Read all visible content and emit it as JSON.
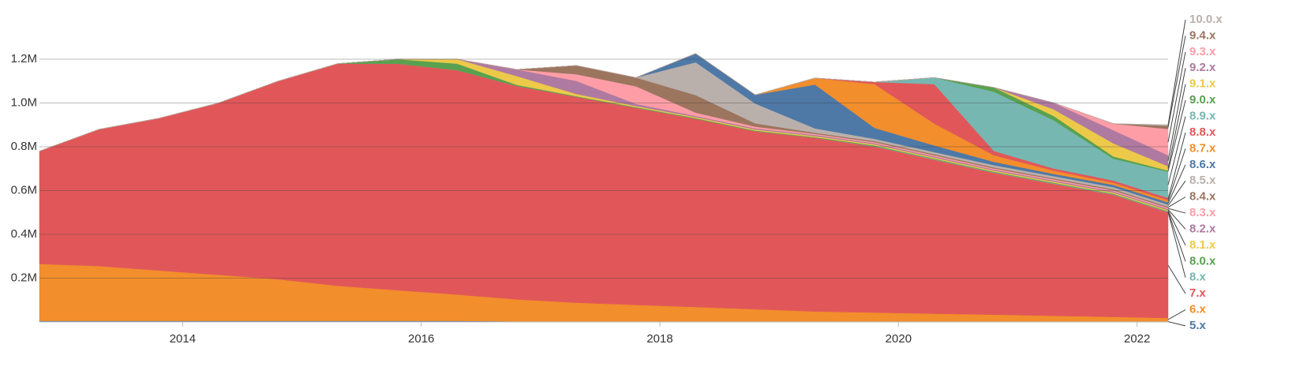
{
  "chart_data": {
    "type": "stacked-area",
    "x": [
      2012.8,
      2013.3,
      2013.8,
      2014.3,
      2014.8,
      2015.3,
      2015.8,
      2016.3,
      2016.8,
      2017.3,
      2017.8,
      2018.3,
      2018.8,
      2019.3,
      2019.8,
      2020.3,
      2020.8,
      2021.3,
      2021.8,
      2022.26
    ],
    "xlim": [
      2012.8,
      2022.26
    ],
    "xticks": [
      2014,
      2016,
      2018,
      2020,
      2022
    ],
    "ylim": [
      0,
      1400000
    ],
    "yticks": [
      {
        "value": 200000,
        "label": "0.2M"
      },
      {
        "value": 400000,
        "label": "0.4M"
      },
      {
        "value": 600000,
        "label": "0.6M"
      },
      {
        "value": 800000,
        "label": "0.8M"
      },
      {
        "value": 1000000,
        "label": "1.0M"
      },
      {
        "value": 1200000,
        "label": "1.2M"
      }
    ],
    "grid": true,
    "series": [
      {
        "name": "5.x",
        "color": "#4e79a7",
        "values": [
          5000,
          5000,
          5000,
          5000,
          5000,
          5000,
          5000,
          5000,
          3000,
          3000,
          3000,
          3000,
          3000,
          3000,
          3000,
          3000,
          3000,
          3000,
          3000,
          3000
        ]
      },
      {
        "name": "6.x",
        "color": "#f28e2c",
        "values": [
          260000,
          250000,
          230000,
          210000,
          190000,
          160000,
          140000,
          120000,
          100000,
          85000,
          75000,
          65000,
          55000,
          45000,
          40000,
          35000,
          30000,
          25000,
          20000,
          15000
        ]
      },
      {
        "name": "7.x",
        "color": "#e15759",
        "values": [
          515000,
          625000,
          695000,
          785000,
          905000,
          1015000,
          1035000,
          1025000,
          975000,
          940000,
          900000,
          860000,
          813000,
          793000,
          758000,
          703000,
          648000,
          603000,
          558000,
          483000
        ]
      },
      {
        "name": "8.x",
        "color": "#76b7b2",
        "values": [
          0,
          0,
          0,
          0,
          0,
          0,
          0,
          0,
          0,
          0,
          0,
          0,
          0,
          0,
          2000,
          2000,
          2000,
          2000,
          2000,
          2000
        ]
      },
      {
        "name": "8.0.x",
        "color": "#59a14f",
        "values": [
          0,
          0,
          0,
          0,
          0,
          0,
          20000,
          30000,
          5000,
          3000,
          3000,
          3000,
          3000,
          3000,
          3000,
          3000,
          3000,
          3000,
          3000,
          3000
        ]
      },
      {
        "name": "8.1.x",
        "color": "#edc949",
        "values": [
          0,
          0,
          0,
          0,
          0,
          0,
          0,
          20000,
          40000,
          10000,
          5000,
          5000,
          5000,
          5000,
          5000,
          5000,
          5000,
          5000,
          5000,
          5000
        ]
      },
      {
        "name": "8.2.x",
        "color": "#af7aa1",
        "values": [
          0,
          0,
          0,
          0,
          0,
          0,
          0,
          0,
          30000,
          60000,
          10000,
          5000,
          5000,
          5000,
          5000,
          5000,
          5000,
          5000,
          5000,
          5000
        ]
      },
      {
        "name": "8.3.x",
        "color": "#ff9da7",
        "values": [
          0,
          0,
          0,
          0,
          0,
          0,
          0,
          0,
          0,
          30000,
          80000,
          15000,
          8000,
          5000,
          5000,
          5000,
          5000,
          5000,
          5000,
          5000
        ]
      },
      {
        "name": "8.4.x",
        "color": "#9c755f",
        "values": [
          0,
          0,
          0,
          0,
          0,
          0,
          0,
          0,
          0,
          40000,
          40000,
          80000,
          15000,
          5000,
          5000,
          5000,
          5000,
          5000,
          5000,
          5000
        ]
      },
      {
        "name": "8.5.x",
        "color": "#bab0ab",
        "values": [
          0,
          0,
          0,
          0,
          0,
          0,
          0,
          0,
          0,
          0,
          0,
          150000,
          90000,
          20000,
          10000,
          10000,
          10000,
          10000,
          10000,
          10000
        ]
      },
      {
        "name": "8.6.x",
        "color": "#4e79a7",
        "values": [
          0,
          0,
          0,
          0,
          0,
          0,
          0,
          0,
          0,
          0,
          0,
          40000,
          40000,
          200000,
          50000,
          30000,
          15000,
          10000,
          10000,
          10000
        ]
      },
      {
        "name": "8.7.x",
        "color": "#f28e2c",
        "values": [
          0,
          0,
          0,
          0,
          0,
          0,
          0,
          0,
          0,
          0,
          0,
          0,
          0,
          30000,
          200000,
          100000,
          30000,
          15000,
          10000,
          10000
        ]
      },
      {
        "name": "8.8.x",
        "color": "#e15759",
        "values": [
          0,
          0,
          0,
          0,
          0,
          0,
          0,
          0,
          0,
          0,
          0,
          0,
          0,
          0,
          10000,
          180000,
          20000,
          10000,
          10000,
          10000
        ]
      },
      {
        "name": "8.9.x",
        "color": "#76b7b2",
        "values": [
          0,
          0,
          0,
          0,
          0,
          0,
          0,
          0,
          0,
          0,
          0,
          0,
          0,
          0,
          0,
          30000,
          270000,
          220000,
          100000,
          120000
        ]
      },
      {
        "name": "9.0.x",
        "color": "#59a14f",
        "values": [
          0,
          0,
          0,
          0,
          0,
          0,
          0,
          0,
          0,
          0,
          0,
          0,
          0,
          0,
          0,
          0,
          20000,
          20000,
          10000,
          5000
        ]
      },
      {
        "name": "9.1.x",
        "color": "#edc949",
        "values": [
          0,
          0,
          0,
          0,
          0,
          0,
          0,
          0,
          0,
          0,
          0,
          0,
          0,
          0,
          0,
          0,
          0,
          30000,
          60000,
          20000
        ]
      },
      {
        "name": "9.2.x",
        "color": "#af7aa1",
        "values": [
          0,
          0,
          0,
          0,
          0,
          0,
          0,
          0,
          0,
          0,
          0,
          0,
          0,
          0,
          0,
          0,
          0,
          30000,
          60000,
          50000
        ]
      },
      {
        "name": "9.3.x",
        "color": "#ff9da7",
        "values": [
          0,
          0,
          0,
          0,
          0,
          0,
          0,
          0,
          0,
          0,
          0,
          0,
          0,
          0,
          0,
          0,
          0,
          0,
          30000,
          120000
        ]
      },
      {
        "name": "9.4.x",
        "color": "#9c755f",
        "values": [
          0,
          0,
          0,
          0,
          0,
          0,
          0,
          0,
          0,
          0,
          0,
          0,
          0,
          0,
          0,
          0,
          0,
          0,
          0,
          15000
        ]
      },
      {
        "name": "10.0.x",
        "color": "#bab0ab",
        "values": [
          0,
          0,
          0,
          0,
          0,
          0,
          0,
          0,
          0,
          0,
          0,
          0,
          0,
          0,
          0,
          0,
          0,
          0,
          0,
          5000
        ]
      }
    ]
  }
}
